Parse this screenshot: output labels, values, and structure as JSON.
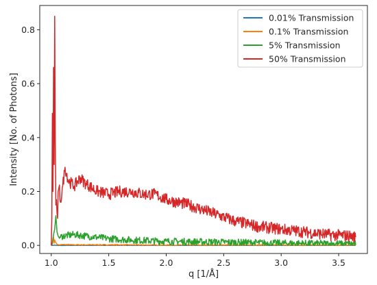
{
  "chart_data": {
    "type": "line",
    "xlabel": "q [1/Å]",
    "ylabel": "Intensity [No. of Photons]",
    "xlim": [
      0.9,
      3.75
    ],
    "ylim": [
      -0.03,
      0.89
    ],
    "xticks": [
      1.0,
      1.5,
      2.0,
      2.5,
      3.0,
      3.5
    ],
    "xtick_labels": [
      "1.0",
      "1.5",
      "2.0",
      "2.5",
      "3.0",
      "3.5"
    ],
    "yticks": [
      0.0,
      0.2,
      0.4,
      0.6,
      0.8
    ],
    "ytick_labels": [
      "0.0",
      "0.2",
      "0.4",
      "0.6",
      "0.8"
    ],
    "grid": false,
    "legend_position": "top-right",
    "series": [
      {
        "name": "0.01% Transmission",
        "color": "#1f77b4",
        "x": [
          1.0,
          1.01,
          1.02,
          1.03,
          1.04,
          1.06,
          1.1,
          1.2,
          1.5,
          2.0,
          2.5,
          3.0,
          3.5,
          3.65
        ],
        "y": [
          0.0,
          0.0,
          0.0005,
          0.001,
          0.0005,
          0.0,
          0.0,
          0.0,
          0.0,
          0.0,
          0.0,
          0.0,
          0.0,
          0.0
        ]
      },
      {
        "name": "0.1% Transmission",
        "color": "#ff7f0e",
        "x": [
          1.0,
          1.01,
          1.02,
          1.025,
          1.03,
          1.04,
          1.05,
          1.07,
          1.1,
          1.2,
          1.5,
          2.0,
          2.5,
          3.0,
          3.5,
          3.65
        ],
        "y": [
          0.0,
          0.004,
          0.03,
          0.008,
          0.02,
          0.01,
          0.004,
          0.002,
          0.003,
          0.002,
          0.002,
          0.001,
          0.001,
          0.001,
          0.0,
          0.0
        ],
        "jitter": 0.002
      },
      {
        "name": "5% Transmission",
        "color": "#2ca02c",
        "x": [
          1.0,
          1.01,
          1.02,
          1.03,
          1.04,
          1.05,
          1.06,
          1.08,
          1.1,
          1.2,
          1.3,
          1.5,
          1.7,
          2.0,
          2.5,
          3.0,
          3.5,
          3.65
        ],
        "y": [
          0.0,
          0.01,
          0.04,
          0.06,
          0.11,
          0.05,
          0.035,
          0.03,
          0.035,
          0.04,
          0.035,
          0.025,
          0.02,
          0.015,
          0.012,
          0.008,
          0.006,
          0.005
        ],
        "jitter": 0.013
      },
      {
        "name": "50% Transmission",
        "color": "#d62728",
        "x": [
          1.0,
          1.005,
          1.01,
          1.015,
          1.02,
          1.025,
          1.03,
          1.035,
          1.04,
          1.045,
          1.05,
          1.055,
          1.06,
          1.07,
          1.08,
          1.1,
          1.12,
          1.15,
          1.2,
          1.25,
          1.3,
          1.4,
          1.5,
          1.6,
          1.7,
          1.8,
          1.9,
          2.0,
          2.2,
          2.4,
          2.6,
          2.8,
          3.0,
          3.2,
          3.4,
          3.6,
          3.65
        ],
        "y": [
          0.0,
          0.1,
          0.49,
          0.2,
          0.66,
          0.3,
          0.85,
          0.4,
          0.15,
          0.17,
          0.12,
          0.1,
          0.2,
          0.22,
          0.16,
          0.22,
          0.29,
          0.24,
          0.22,
          0.25,
          0.23,
          0.2,
          0.19,
          0.2,
          0.2,
          0.19,
          0.19,
          0.17,
          0.15,
          0.12,
          0.09,
          0.07,
          0.06,
          0.05,
          0.04,
          0.035,
          0.03
        ],
        "jitter": 0.022
      }
    ]
  }
}
